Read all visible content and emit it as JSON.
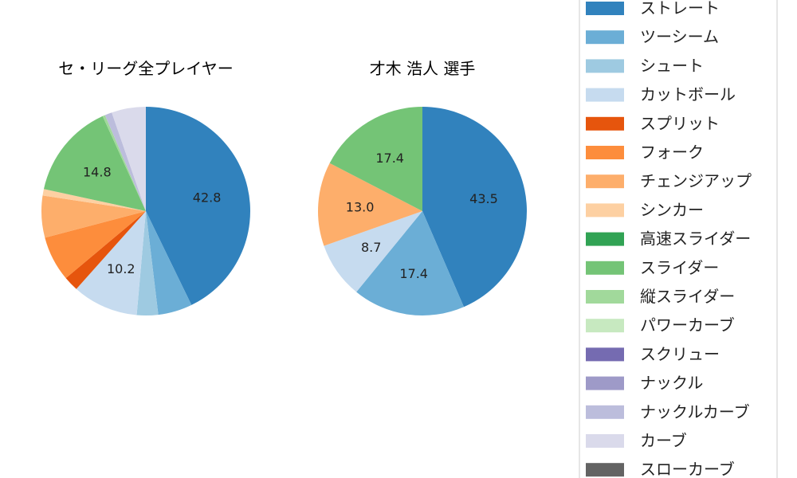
{
  "chart_data": [
    {
      "type": "pie",
      "title": "セ・リーグ全プレイヤー",
      "categories": [
        "ストレート",
        "ツーシーム",
        "シュート",
        "カットボール",
        "スプリット",
        "フォーク",
        "チェンジアップ",
        "シンカー",
        "スライダー",
        "縦スライダー",
        "ナックルカーブ",
        "カーブ"
      ],
      "values": [
        42.8,
        5.3,
        3.3,
        10.2,
        2.3,
        7.0,
        6.5,
        1.0,
        14.8,
        0.4,
        1.1,
        5.3
      ],
      "labeled": [
        42.8,
        10.2,
        14.8
      ]
    },
    {
      "type": "pie",
      "title": "才木 浩人  選手",
      "categories": [
        "ストレート",
        "ツーシーム",
        "カットボール",
        "チェンジアップ",
        "スライダー"
      ],
      "values": [
        43.5,
        17.4,
        8.7,
        13.0,
        17.4
      ],
      "labeled": [
        43.5,
        17.4,
        8.7,
        13.0,
        17.4
      ]
    }
  ],
  "legend": {
    "placement": "right",
    "entries": [
      {
        "label": "ストレート",
        "color": "#3182bd"
      },
      {
        "label": "ツーシーム",
        "color": "#6baed6"
      },
      {
        "label": "シュート",
        "color": "#9ecae1"
      },
      {
        "label": "カットボール",
        "color": "#c6dbef"
      },
      {
        "label": "スプリット",
        "color": "#e6550d"
      },
      {
        "label": "フォーク",
        "color": "#fd8d3c"
      },
      {
        "label": "チェンジアップ",
        "color": "#fdae6b"
      },
      {
        "label": "シンカー",
        "color": "#fdd0a2"
      },
      {
        "label": "高速スライダー",
        "color": "#31a354"
      },
      {
        "label": "スライダー",
        "color": "#74c476"
      },
      {
        "label": "縦スライダー",
        "color": "#a1d99b"
      },
      {
        "label": "パワーカーブ",
        "color": "#c7e9c0"
      },
      {
        "label": "スクリュー",
        "color": "#756bb1"
      },
      {
        "label": "ナックル",
        "color": "#9e9ac8"
      },
      {
        "label": "ナックルカーブ",
        "color": "#bcbddc"
      },
      {
        "label": "カーブ",
        "color": "#dadaeb"
      },
      {
        "label": "スローカーブ",
        "color": "#636363"
      }
    ]
  }
}
